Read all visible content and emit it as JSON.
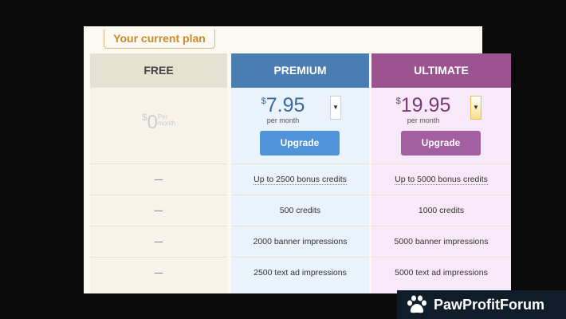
{
  "badge": "Your current plan",
  "plans": [
    {
      "name": "FREE",
      "currency": "$",
      "price": "0",
      "per_line1": "Per",
      "per_line2": "month",
      "features": [
        "—",
        "—",
        "—",
        "—"
      ]
    },
    {
      "name": "PREMIUM",
      "currency": "$",
      "price": "7.95",
      "per": "per month",
      "button": "Upgrade",
      "features": [
        "Up to 2500 bonus credits",
        "500 credits",
        "2000 banner impressions",
        "2500 text ad impressions"
      ]
    },
    {
      "name": "ULTIMATE",
      "currency": "$",
      "price": "19.95",
      "per": "per month",
      "button": "Upgrade",
      "features": [
        "Up to 5000 bonus credits",
        "1000 credits",
        "5000 banner impressions",
        "5000 text ad impressions"
      ]
    }
  ],
  "watermark": "PawProfitForum",
  "colors": {
    "premium": "#4a7eb3",
    "ultimate": "#9b548f",
    "free": "#e7e1d2",
    "badge": "#c98a2a"
  }
}
